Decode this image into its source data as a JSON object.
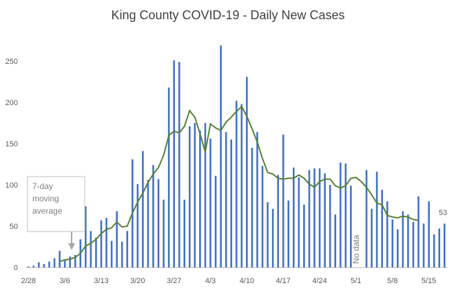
{
  "chart_data": {
    "type": "bar",
    "title": "King County COVID-19 - Daily New Cases",
    "xlabel": "",
    "ylabel": "",
    "ylim": [
      0,
      270
    ],
    "yticks": [
      0,
      50,
      100,
      150,
      200,
      250
    ],
    "grid": false,
    "colors": {
      "bars": "#4472c4",
      "line": "#548235",
      "axis": "#bfbfbf",
      "text": "#595959",
      "note": "#7f7f7f"
    },
    "x_tick_labels": [
      {
        "index": 0,
        "label": "2/28"
      },
      {
        "index": 7,
        "label": "3/6"
      },
      {
        "index": 14,
        "label": "3/13"
      },
      {
        "index": 21,
        "label": "3/20"
      },
      {
        "index": 28,
        "label": "3/27"
      },
      {
        "index": 35,
        "label": "4/3"
      },
      {
        "index": 42,
        "label": "4/10"
      },
      {
        "index": 49,
        "label": "4/17"
      },
      {
        "index": 56,
        "label": "4/24"
      },
      {
        "index": 63,
        "label": "5/1"
      },
      {
        "index": 70,
        "label": "5/8"
      },
      {
        "index": 77,
        "label": "5/15"
      }
    ],
    "series": [
      {
        "name": "Daily new cases",
        "type": "bar",
        "values": [
          1,
          2,
          6,
          4,
          7,
          11,
          20,
          9,
          13,
          15,
          34,
          74,
          44,
          36,
          57,
          60,
          32,
          68,
          31,
          44,
          131,
          101,
          141,
          106,
          124,
          107,
          82,
          218,
          251,
          249,
          82,
          171,
          175,
          166,
          175,
          156,
          111,
          269,
          164,
          155,
          202,
          198,
          231,
          145,
          164,
          123,
          79,
          71,
          112,
          161,
          81,
          121,
          109,
          76,
          118,
          120,
          120,
          114,
          100,
          64,
          127,
          126,
          99,
          null,
          null,
          118,
          71,
          116,
          94,
          80,
          58,
          46,
          68,
          64,
          55,
          86,
          53,
          80,
          40,
          47,
          53
        ]
      },
      {
        "name": "7-day moving average",
        "type": "line",
        "start_index": 6,
        "values": [
          7,
          9,
          10,
          12,
          17,
          26,
          29,
          34,
          41,
          46,
          48,
          55,
          49,
          50,
          66,
          79,
          90,
          103,
          113,
          121,
          136,
          160,
          165,
          163,
          171,
          190,
          182,
          162,
          140,
          174,
          169,
          166,
          176,
          182,
          189,
          195,
          183,
          168,
          152,
          132,
          115,
          113,
          108,
          107,
          108,
          108,
          112,
          108,
          101,
          97,
          104,
          107,
          107,
          99,
          96,
          99,
          108,
          109,
          104,
          97,
          88,
          78,
          76,
          63,
          61,
          60,
          62,
          61,
          58,
          57
        ]
      }
    ],
    "annotations": {
      "moving_avg_label": [
        "7-day",
        "moving",
        "average"
      ],
      "no_data": "No data",
      "last_value": "53"
    }
  }
}
